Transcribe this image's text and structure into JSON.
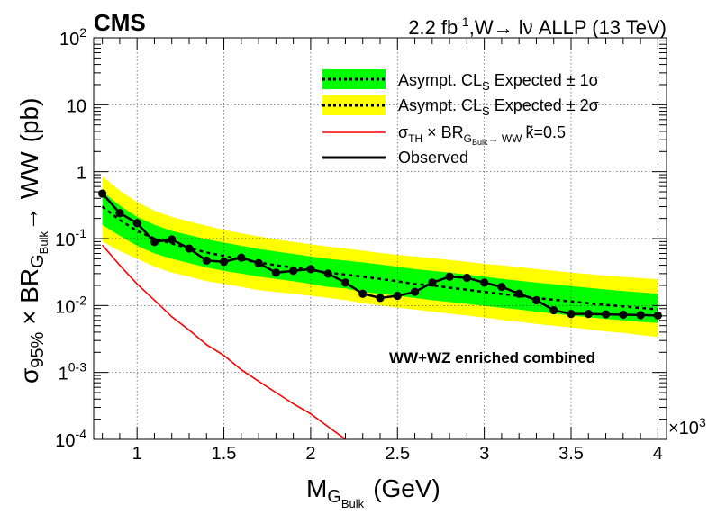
{
  "header": {
    "experiment": "CMS",
    "lumi_label": "2.2 fb",
    "lumi_unit_exp": "-1",
    "channel_label": ",W→ lν ALLP (13 TeV)"
  },
  "annotation": "WW+WZ enriched combined",
  "colors": {
    "band_1sigma": "#00ff00",
    "band_2sigma": "#ffff00",
    "theory": "#ff0000",
    "observed": "#000000",
    "expected": "#000000"
  },
  "chart_data": {
    "type": "line",
    "x_axis": {
      "label_main": "M",
      "label_sub": "G",
      "label_subsub": "Bulk",
      "label_unit": "(GeV)",
      "range": [
        750,
        4050
      ],
      "ticks": [
        1000,
        1500,
        2000,
        2500,
        3000,
        3500,
        4000
      ],
      "tick_labels": [
        "1",
        "1.5",
        "2",
        "2.5",
        "3",
        "3.5",
        "4"
      ],
      "multiplier_base": "×10",
      "multiplier_exp": "3"
    },
    "y_axis": {
      "scale": "log",
      "range": [
        0.0001,
        100
      ],
      "ticks": [
        0.0001,
        0.001,
        0.01,
        0.1,
        1,
        10,
        100
      ],
      "tick_labels": [
        {
          "base": "10",
          "exp": "-4"
        },
        {
          "base": "1",
          "exp": "0-3"
        },
        {
          "base": "10",
          "exp": "-2"
        },
        {
          "base": "10",
          "exp": "-1"
        },
        {
          "base": "1",
          "exp": ""
        },
        {
          "base": "10",
          "exp": ""
        },
        {
          "base": "10",
          "exp": "2"
        }
      ],
      "label_sigma": "σ",
      "label_sigma_sub": "95%",
      "label_times": " × BR",
      "label_br_sub": "G",
      "label_br_subsub": "Bulk",
      "label_br_arrow": "→ WW",
      "label_unit": "(pb)"
    },
    "grid": true,
    "legend": {
      "position": "top-right",
      "entries": [
        {
          "name": "Asympt. CL",
          "sub": "S",
          "tail": "  Expected ± 1σ"
        },
        {
          "name": "Asympt. CL",
          "sub": "S",
          "tail": "  Expected ± 2σ"
        },
        {
          "name": "σ",
          "sub": "TH",
          "tail": " × BR",
          "sub2": "G",
          "subsub2": "Bulk",
          "tail2": "→ WW",
          "k": "k̃=0.5"
        },
        {
          "name": "Observed",
          "sub": "",
          "tail": ""
        }
      ]
    },
    "mass_points": [
      800,
      900,
      1000,
      1100,
      1200,
      1300,
      1400,
      1500,
      1600,
      1700,
      1800,
      1900,
      2000,
      2100,
      2200,
      2300,
      2400,
      2500,
      2600,
      2700,
      2800,
      2900,
      3000,
      3100,
      3200,
      3300,
      3400,
      3500,
      3600,
      3700,
      3800,
      3900,
      4000
    ],
    "observed": [
      0.47,
      0.24,
      0.17,
      0.089,
      0.097,
      0.071,
      0.047,
      0.045,
      0.052,
      0.043,
      0.031,
      0.033,
      0.035,
      0.03,
      0.022,
      0.015,
      0.013,
      0.014,
      0.016,
      0.022,
      0.027,
      0.026,
      0.022,
      0.019,
      0.015,
      0.012,
      0.0085,
      0.0075,
      0.0075,
      0.0074,
      0.0073,
      0.0072,
      0.0071
    ],
    "expected": [
      0.3,
      0.19,
      0.13,
      0.1,
      0.084,
      0.072,
      0.062,
      0.055,
      0.049,
      0.044,
      0.04,
      0.037,
      0.034,
      0.031,
      0.029,
      0.027,
      0.025,
      0.023,
      0.021,
      0.02,
      0.0185,
      0.0172,
      0.016,
      0.0149,
      0.0139,
      0.013,
      0.0122,
      0.0115,
      0.0108,
      0.0102,
      0.0097,
      0.0092,
      0.0088
    ],
    "band1_low": [
      0.16,
      0.11,
      0.078,
      0.06,
      0.05,
      0.043,
      0.037,
      0.033,
      0.03,
      0.027,
      0.025,
      0.023,
      0.021,
      0.019,
      0.018,
      0.016,
      0.015,
      0.014,
      0.013,
      0.012,
      0.0113,
      0.0106,
      0.0099,
      0.0093,
      0.0087,
      0.0081,
      0.0076,
      0.0071,
      0.0067,
      0.0063,
      0.006,
      0.0057,
      0.0055
    ],
    "band1_high": [
      0.5,
      0.31,
      0.21,
      0.16,
      0.13,
      0.113,
      0.098,
      0.087,
      0.078,
      0.07,
      0.064,
      0.059,
      0.054,
      0.05,
      0.047,
      0.044,
      0.041,
      0.038,
      0.035,
      0.033,
      0.031,
      0.029,
      0.027,
      0.025,
      0.0235,
      0.022,
      0.0207,
      0.0195,
      0.0184,
      0.0174,
      0.0165,
      0.0157,
      0.015
    ],
    "band2_low": [
      0.09,
      0.065,
      0.05,
      0.038,
      0.031,
      0.027,
      0.023,
      0.021,
      0.019,
      0.017,
      0.016,
      0.015,
      0.014,
      0.013,
      0.012,
      0.0108,
      0.01,
      0.0093,
      0.0087,
      0.0081,
      0.0076,
      0.0071,
      0.0066,
      0.0061,
      0.0057,
      0.0053,
      0.005,
      0.0047,
      0.0044,
      0.0041,
      0.0039,
      0.0036,
      0.0034
    ],
    "band2_high": [
      0.85,
      0.52,
      0.35,
      0.26,
      0.21,
      0.18,
      0.155,
      0.135,
      0.12,
      0.108,
      0.098,
      0.089,
      0.082,
      0.076,
      0.071,
      0.066,
      0.061,
      0.057,
      0.054,
      0.051,
      0.048,
      0.045,
      0.042,
      0.04,
      0.0375,
      0.035,
      0.033,
      0.031,
      0.0295,
      0.028,
      0.0268,
      0.0257,
      0.0247
    ],
    "theory_x": [
      800,
      900,
      1000,
      1100,
      1200,
      1300,
      1400,
      1500,
      1600,
      1700,
      1800,
      1900,
      2000,
      2100,
      2200
    ],
    "theory": [
      0.08,
      0.04,
      0.021,
      0.012,
      0.0068,
      0.0043,
      0.0026,
      0.0018,
      0.0011,
      0.00074,
      0.0005,
      0.00034,
      0.00024,
      0.000155,
      0.0001
    ]
  }
}
